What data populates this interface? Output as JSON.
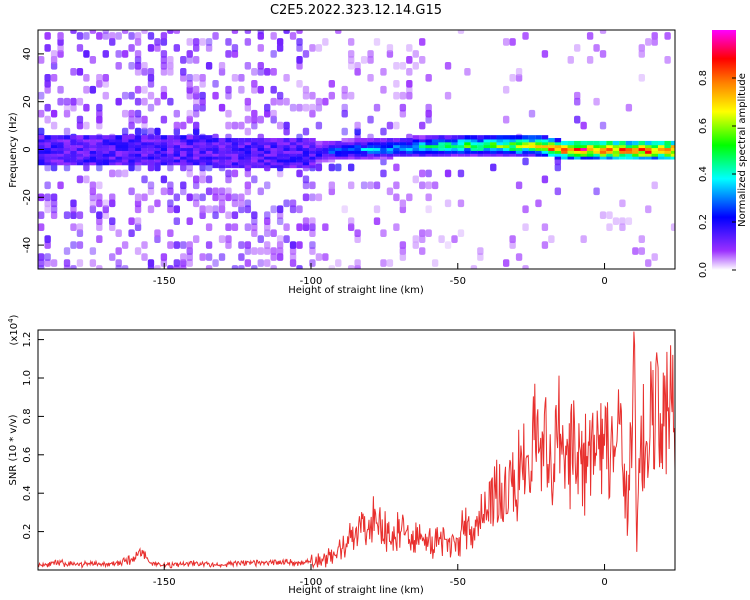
{
  "title": "C2E5.2022.323.12.14.G15",
  "chart_data": [
    {
      "type": "heatmap",
      "xlabel": "Height of straight line (km)",
      "ylabel": "Frequency (Hz)",
      "xlim": [
        -193,
        24
      ],
      "ylim": [
        -50,
        50
      ],
      "xticks": [
        -150,
        -100,
        -50,
        0
      ],
      "xtick_labels": [
        "-150",
        "-100",
        "-50",
        "0"
      ],
      "yticks": [
        -40,
        -20,
        0,
        20,
        40
      ],
      "ytick_labels": [
        "-40",
        "-20",
        "0",
        "20",
        "40"
      ],
      "colorbar": {
        "label": "Normalized spectral amplitude",
        "range": [
          0,
          1
        ],
        "ticks": [
          0.0,
          0.2,
          0.4,
          0.6,
          0.8
        ],
        "tick_labels": [
          "0.0",
          "0.2",
          "0.4",
          "0.6",
          "0.8"
        ],
        "colormap": [
          "#ffffff",
          "#9b30ff",
          "#0000ff",
          "#00ffff",
          "#00ff00",
          "#ffff00",
          "#ff8000",
          "#ff0000",
          "#ff00ff"
        ]
      },
      "ridge": {
        "description_values": [
          {
            "x": -190,
            "f": 0,
            "amp": 0.12
          },
          {
            "x": -150,
            "f": 0,
            "amp": 0.12
          },
          {
            "x": -110,
            "f": -2,
            "amp": 0.15
          },
          {
            "x": -90,
            "f": 0,
            "amp": 0.3
          },
          {
            "x": -70,
            "f": 1,
            "amp": 0.4
          },
          {
            "x": -50,
            "f": 2,
            "amp": 0.55
          },
          {
            "x": -35,
            "f": 2,
            "amp": 0.6
          },
          {
            "x": -25,
            "f": 2,
            "amp": 0.75
          },
          {
            "x": -15,
            "f": 0,
            "amp": 0.9
          },
          {
            "x": 0,
            "f": 0,
            "amp": 0.95
          },
          {
            "x": 20,
            "f": 0,
            "amp": 0.95
          }
        ]
      },
      "grid": false
    },
    {
      "type": "line",
      "xlabel": "Height of straight line (km)",
      "ylabel": "SNR (10 * v/v)",
      "yscale_label": "(x10",
      "yscale_exp": "4",
      "yscale_close": ")",
      "xlim": [
        -193,
        24
      ],
      "ylim": [
        0,
        1.25
      ],
      "xticks": [
        -150,
        -100,
        -50,
        0
      ],
      "xtick_labels": [
        "-150",
        "-100",
        "-50",
        "0"
      ],
      "yticks": [
        0.2,
        0.4,
        0.6,
        0.8,
        1.0,
        1.2
      ],
      "ytick_labels": [
        "0.2",
        "0.4",
        "0.6",
        "0.8",
        "1.0",
        "1.2"
      ],
      "color": "#e8302e",
      "series": [
        {
          "x": [
            -193,
            -185,
            -180,
            -175,
            -170,
            -165,
            -160,
            -158,
            -155,
            -150,
            -145,
            -140,
            -135,
            -130,
            -125,
            -120,
            -115,
            -110,
            -105,
            -100,
            -95,
            -90,
            -85,
            -82,
            -80,
            -78,
            -75,
            -72,
            -70,
            -65,
            -60,
            -55,
            -50,
            -47,
            -45,
            -42,
            -40,
            -38,
            -35,
            -33,
            -30,
            -28,
            -25,
            -23,
            -22,
            -20,
            -18,
            -15,
            -13,
            -10,
            -8,
            -5,
            -3,
            0,
            3,
            5,
            8,
            10,
            11,
            12,
            15,
            18,
            20,
            22,
            24
          ],
          "y": [
            0.03,
            0.04,
            0.03,
            0.04,
            0.03,
            0.04,
            0.07,
            0.12,
            0.04,
            0.03,
            0.03,
            0.04,
            0.03,
            0.03,
            0.04,
            0.04,
            0.04,
            0.05,
            0.04,
            0.05,
            0.06,
            0.1,
            0.2,
            0.3,
            0.25,
            0.36,
            0.22,
            0.2,
            0.25,
            0.18,
            0.2,
            0.15,
            0.18,
            0.25,
            0.2,
            0.3,
            0.38,
            0.45,
            0.42,
            0.5,
            0.45,
            0.62,
            0.55,
            1.1,
            0.6,
            0.8,
            0.62,
            0.8,
            0.58,
            0.85,
            0.62,
            0.7,
            0.65,
            0.82,
            0.6,
            0.8,
            0.3,
            1.2,
            0.2,
            0.65,
            0.85,
            0.9,
            0.82,
            1.0,
            0.85
          ]
        }
      ]
    }
  ]
}
